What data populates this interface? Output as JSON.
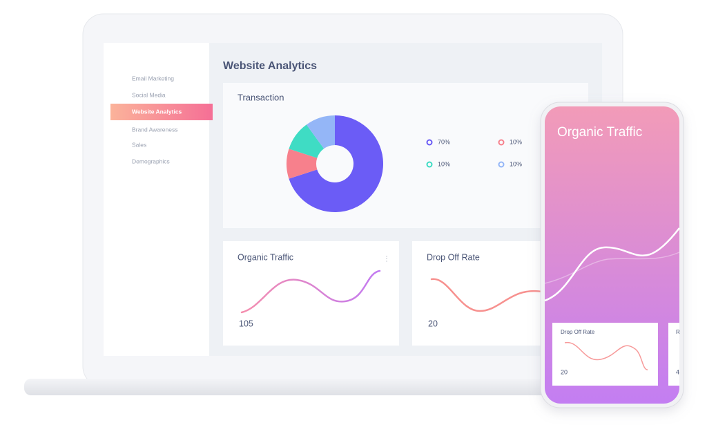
{
  "sidebar": {
    "items": [
      "Email Marketing",
      "Social Media",
      "Website Analytics",
      "Brand Awareness",
      "Sales",
      "Demographics"
    ],
    "active": 2
  },
  "header": {
    "title": "Website Analytics"
  },
  "transaction": {
    "title": "Transaction",
    "type": "donut",
    "values": [
      70,
      10,
      10,
      10
    ],
    "value_labels": [
      "70%",
      "10%",
      "10%",
      "10%"
    ],
    "colors": [
      "#6b5cf6",
      "#f7808c",
      "#3fdcc4",
      "#94b6f7"
    ]
  },
  "cards": [
    {
      "title": "Organic Traffic",
      "value": 105
    },
    {
      "title": "Drop Off Rate",
      "value": 20
    }
  ],
  "phone": {
    "title": "Organic Traffic",
    "card": {
      "title": "Drop Off Rate",
      "value": 20
    },
    "card2": {
      "title": "R",
      "value": 4
    }
  }
}
